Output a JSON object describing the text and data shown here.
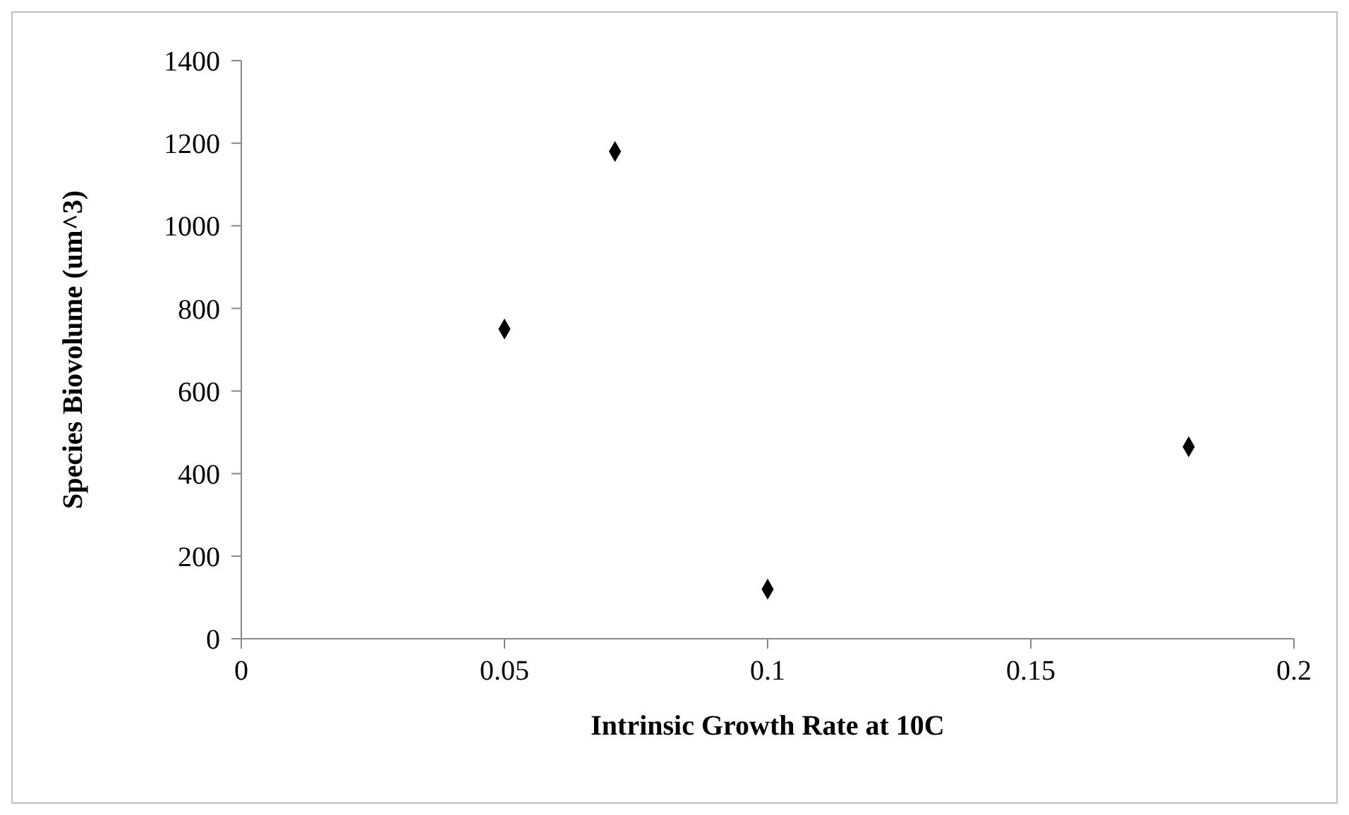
{
  "chart_data": {
    "type": "scatter",
    "xlabel": "Intrinsic Growth Rate at 10C",
    "ylabel": "Species Biovolume (um^3)",
    "x": [
      0.05,
      0.071,
      0.1,
      0.18
    ],
    "series": [
      {
        "color": "#000000",
        "values": [
          750,
          1180,
          120,
          465
        ]
      }
    ],
    "xlim": [
      0,
      0.2
    ],
    "xticks": [
      0,
      0.05,
      0.1,
      0.15,
      0.2
    ],
    "ylim": [
      0,
      1400
    ],
    "yticks": [
      0,
      200,
      400,
      600,
      800,
      1000,
      1200,
      1400
    ],
    "grid": false,
    "legend": false,
    "marker": "diamond"
  }
}
